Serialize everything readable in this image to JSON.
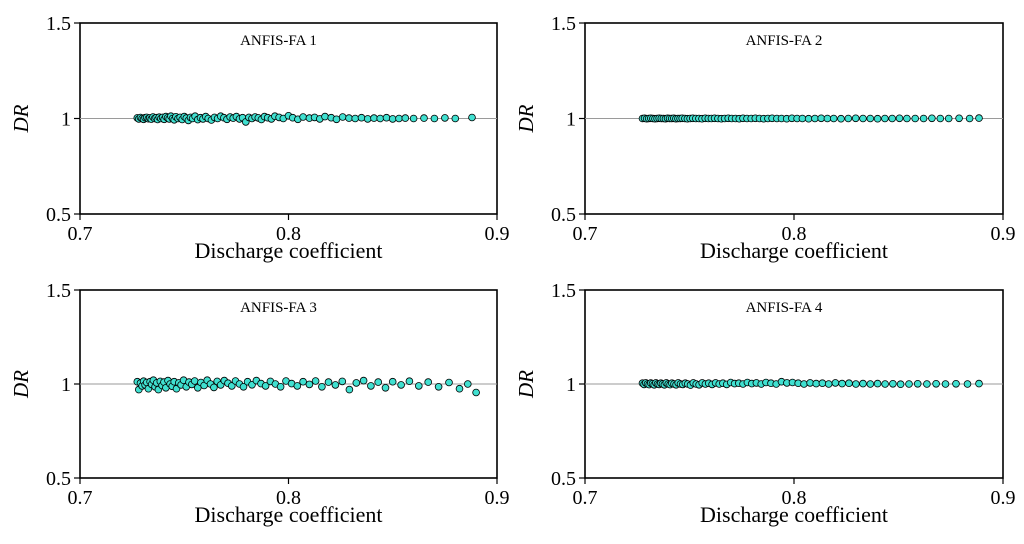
{
  "chart_data": [
    {
      "type": "scatter",
      "title": "ANFIS-FA 1",
      "xlabel": "Discharge coefficient",
      "ylabel": "DR",
      "xlim": [
        0.7,
        0.9
      ],
      "ylim": [
        0.5,
        1.5
      ],
      "x_ticks": [
        "0.7",
        "0.8",
        "0.9"
      ],
      "y_ticks": [
        "0.5",
        "1",
        "1.5"
      ],
      "reference_line": 1,
      "grid": false,
      "marker_color": "#40e0d0",
      "marker_edge": "#000000",
      "points": [
        [
          0.7275,
          1.003
        ],
        [
          0.7282,
          0.998
        ],
        [
          0.729,
          1.005
        ],
        [
          0.7298,
          1.0
        ],
        [
          0.7305,
          0.996
        ],
        [
          0.7312,
          1.004
        ],
        [
          0.732,
          1.006
        ],
        [
          0.7328,
          0.999
        ],
        [
          0.7335,
          1.003
        ],
        [
          0.7342,
          0.997
        ],
        [
          0.735,
          1.008
        ],
        [
          0.7358,
          1.0
        ],
        [
          0.7365,
          1.004
        ],
        [
          0.7372,
          0.995
        ],
        [
          0.738,
          1.007
        ],
        [
          0.7388,
          1.0
        ],
        [
          0.7396,
          1.006
        ],
        [
          0.7404,
          0.996
        ],
        [
          0.7412,
          1.01
        ],
        [
          0.742,
          1.003
        ],
        [
          0.7428,
          0.998
        ],
        [
          0.7436,
          1.012
        ],
        [
          0.7444,
          1.0
        ],
        [
          0.7452,
          0.993
        ],
        [
          0.746,
          1.009
        ],
        [
          0.747,
          1.0
        ],
        [
          0.748,
          1.006
        ],
        [
          0.749,
          0.995
        ],
        [
          0.75,
          1.01
        ],
        [
          0.751,
          1.002
        ],
        [
          0.752,
          0.99
        ],
        [
          0.753,
          1.006
        ],
        [
          0.754,
          1.0
        ],
        [
          0.7552,
          1.012
        ],
        [
          0.7565,
          0.994
        ],
        [
          0.7578,
          1.004
        ],
        [
          0.759,
          0.998
        ],
        [
          0.7603,
          1.01
        ],
        [
          0.7615,
          1.0
        ],
        [
          0.763,
          0.992
        ],
        [
          0.7645,
          1.006
        ],
        [
          0.766,
          1.0
        ],
        [
          0.7675,
          1.012
        ],
        [
          0.769,
          1.004
        ],
        [
          0.7705,
          0.996
        ],
        [
          0.772,
          1.008
        ],
        [
          0.7735,
          1.002
        ],
        [
          0.775,
          1.01
        ],
        [
          0.7765,
          0.998
        ],
        [
          0.778,
          1.004
        ],
        [
          0.7795,
          0.982
        ],
        [
          0.781,
          1.006
        ],
        [
          0.7825,
          1.0
        ],
        [
          0.784,
          1.008
        ],
        [
          0.7855,
          1.003
        ],
        [
          0.787,
          0.995
        ],
        [
          0.7885,
          1.01
        ],
        [
          0.79,
          1.004
        ],
        [
          0.7918,
          0.998
        ],
        [
          0.7935,
          1.012
        ],
        [
          0.7955,
          1.006
        ],
        [
          0.7975,
          1.0
        ],
        [
          0.8,
          1.014
        ],
        [
          0.802,
          1.004
        ],
        [
          0.8045,
          0.996
        ],
        [
          0.807,
          1.008
        ],
        [
          0.81,
          1.002
        ],
        [
          0.8125,
          1.006
        ],
        [
          0.815,
          0.998
        ],
        [
          0.8175,
          1.01
        ],
        [
          0.8205,
          1.004
        ],
        [
          0.823,
          0.996
        ],
        [
          0.826,
          1.008
        ],
        [
          0.829,
          1.002
        ],
        [
          0.832,
          1.0
        ],
        [
          0.835,
          1.004
        ],
        [
          0.838,
          0.998
        ],
        [
          0.841,
          1.002
        ],
        [
          0.844,
          1.0
        ],
        [
          0.847,
          1.004
        ],
        [
          0.85,
          0.998
        ],
        [
          0.853,
          1.0
        ],
        [
          0.856,
          1.002
        ],
        [
          0.86,
          1.0
        ],
        [
          0.865,
          1.002
        ],
        [
          0.87,
          1.0
        ],
        [
          0.875,
          1.003
        ],
        [
          0.88,
          1.0
        ],
        [
          0.888,
          1.005
        ]
      ]
    },
    {
      "type": "scatter",
      "title": "ANFIS-FA 2",
      "xlabel": "Discharge coefficient",
      "ylabel": "DR",
      "xlim": [
        0.7,
        0.9
      ],
      "ylim": [
        0.5,
        1.5
      ],
      "x_ticks": [
        "0.7",
        "0.8",
        "0.9"
      ],
      "y_ticks": [
        "0.5",
        "1",
        "1.5"
      ],
      "reference_line": 1,
      "grid": false,
      "marker_color": "#40e0d0",
      "marker_edge": "#000000",
      "points": [
        [
          0.7275,
          1.0
        ],
        [
          0.7285,
          1.001
        ],
        [
          0.7295,
          0.999
        ],
        [
          0.7305,
          1.0
        ],
        [
          0.7315,
          1.001
        ],
        [
          0.7325,
          1.0
        ],
        [
          0.7335,
          0.999
        ],
        [
          0.7345,
          1.0
        ],
        [
          0.7355,
          1.001
        ],
        [
          0.7365,
          1.0
        ],
        [
          0.7375,
          1.0
        ],
        [
          0.7385,
          0.999
        ],
        [
          0.7395,
          1.001
        ],
        [
          0.7405,
          1.0
        ],
        [
          0.7415,
          1.0
        ],
        [
          0.7425,
          1.001
        ],
        [
          0.7435,
          0.999
        ],
        [
          0.7445,
          1.0
        ],
        [
          0.7455,
          1.0
        ],
        [
          0.7465,
          1.001
        ],
        [
          0.7478,
          1.0
        ],
        [
          0.749,
          0.999
        ],
        [
          0.7503,
          1.0
        ],
        [
          0.7516,
          1.001
        ],
        [
          0.753,
          1.0
        ],
        [
          0.7545,
          1.0
        ],
        [
          0.756,
          0.999
        ],
        [
          0.7575,
          1.001
        ],
        [
          0.759,
          1.0
        ],
        [
          0.7605,
          1.0
        ],
        [
          0.762,
          1.001
        ],
        [
          0.7636,
          1.0
        ],
        [
          0.7652,
          0.999
        ],
        [
          0.7668,
          1.0
        ],
        [
          0.7685,
          1.001
        ],
        [
          0.7702,
          1.0
        ],
        [
          0.772,
          1.0
        ],
        [
          0.7738,
          0.999
        ],
        [
          0.7756,
          1.001
        ],
        [
          0.7775,
          1.0
        ],
        [
          0.7795,
          1.0
        ],
        [
          0.7815,
          1.001
        ],
        [
          0.7835,
          1.0
        ],
        [
          0.7855,
          0.999
        ],
        [
          0.7875,
          1.0
        ],
        [
          0.7895,
          1.001
        ],
        [
          0.7918,
          1.0
        ],
        [
          0.794,
          1.0
        ],
        [
          0.7965,
          0.999
        ],
        [
          0.799,
          1.001
        ],
        [
          0.8015,
          1.0
        ],
        [
          0.804,
          1.0
        ],
        [
          0.807,
          0.999
        ],
        [
          0.81,
          1.0
        ],
        [
          0.813,
          1.001
        ],
        [
          0.816,
          1.0
        ],
        [
          0.819,
          1.0
        ],
        [
          0.8225,
          0.999
        ],
        [
          0.826,
          1.0
        ],
        [
          0.8295,
          1.001
        ],
        [
          0.833,
          1.0
        ],
        [
          0.8365,
          1.0
        ],
        [
          0.84,
          0.999
        ],
        [
          0.8435,
          1.0
        ],
        [
          0.847,
          1.0
        ],
        [
          0.8505,
          1.001
        ],
        [
          0.854,
          1.0
        ],
        [
          0.858,
          1.0
        ],
        [
          0.862,
          1.0
        ],
        [
          0.866,
          1.001
        ],
        [
          0.87,
          1.0
        ],
        [
          0.874,
          1.0
        ],
        [
          0.879,
          1.001
        ],
        [
          0.884,
          1.0
        ],
        [
          0.8885,
          1.002
        ]
      ]
    },
    {
      "type": "scatter",
      "title": "ANFIS-FA 3",
      "xlabel": "Discharge coefficient",
      "ylabel": "DR",
      "xlim": [
        0.7,
        0.9
      ],
      "ylim": [
        0.5,
        1.5
      ],
      "x_ticks": [
        "0.7",
        "0.8",
        "0.9"
      ],
      "y_ticks": [
        "0.5",
        "1",
        "1.5"
      ],
      "reference_line": 1,
      "grid": false,
      "marker_color": "#40e0d0",
      "marker_edge": "#000000",
      "points": [
        [
          0.7275,
          1.012
        ],
        [
          0.7282,
          0.97
        ],
        [
          0.729,
          1.005
        ],
        [
          0.7298,
          0.99
        ],
        [
          0.7305,
          1.015
        ],
        [
          0.7312,
          0.995
        ],
        [
          0.732,
          1.008
        ],
        [
          0.7328,
          0.975
        ],
        [
          0.7336,
          1.012
        ],
        [
          0.7344,
          0.998
        ],
        [
          0.7352,
          1.02
        ],
        [
          0.736,
          0.985
        ],
        [
          0.7368,
          1.006
        ],
        [
          0.7376,
          0.97
        ],
        [
          0.7385,
          1.014
        ],
        [
          0.7394,
          0.992
        ],
        [
          0.7403,
          1.01
        ],
        [
          0.7412,
          0.98
        ],
        [
          0.7422,
          1.018
        ],
        [
          0.7432,
          1.0
        ],
        [
          0.7442,
          0.988
        ],
        [
          0.7452,
          1.012
        ],
        [
          0.7463,
          0.975
        ],
        [
          0.7474,
          1.006
        ],
        [
          0.7485,
          0.995
        ],
        [
          0.7497,
          1.02
        ],
        [
          0.751,
          0.985
        ],
        [
          0.7523,
          1.01
        ],
        [
          0.7536,
          0.998
        ],
        [
          0.755,
          1.016
        ],
        [
          0.7565,
          0.98
        ],
        [
          0.758,
          1.008
        ],
        [
          0.7595,
          0.992
        ],
        [
          0.761,
          1.02
        ],
        [
          0.7626,
          1.0
        ],
        [
          0.7642,
          0.982
        ],
        [
          0.7658,
          1.014
        ],
        [
          0.7675,
          0.995
        ],
        [
          0.7692,
          1.018
        ],
        [
          0.771,
          1.004
        ],
        [
          0.7728,
          0.99
        ],
        [
          0.7746,
          1.016
        ],
        [
          0.7765,
          1.0
        ],
        [
          0.7784,
          0.985
        ],
        [
          0.7804,
          1.012
        ],
        [
          0.7825,
          0.996
        ],
        [
          0.7846,
          1.018
        ],
        [
          0.7868,
          1.002
        ],
        [
          0.789,
          0.99
        ],
        [
          0.7913,
          1.014
        ],
        [
          0.7937,
          1.0
        ],
        [
          0.7962,
          0.985
        ],
        [
          0.7988,
          1.016
        ],
        [
          0.8015,
          1.002
        ],
        [
          0.8042,
          0.99
        ],
        [
          0.807,
          1.012
        ],
        [
          0.81,
          0.998
        ],
        [
          0.813,
          1.016
        ],
        [
          0.816,
          0.985
        ],
        [
          0.8192,
          1.01
        ],
        [
          0.8225,
          0.995
        ],
        [
          0.8258,
          1.014
        ],
        [
          0.8292,
          0.97
        ],
        [
          0.8325,
          1.006
        ],
        [
          0.836,
          1.018
        ],
        [
          0.8395,
          0.99
        ],
        [
          0.843,
          1.01
        ],
        [
          0.8465,
          0.98
        ],
        [
          0.85,
          1.012
        ],
        [
          0.854,
          0.995
        ],
        [
          0.858,
          1.015
        ],
        [
          0.8625,
          0.99
        ],
        [
          0.867,
          1.01
        ],
        [
          0.872,
          0.985
        ],
        [
          0.877,
          1.008
        ],
        [
          0.882,
          0.975
        ],
        [
          0.886,
          1.0
        ],
        [
          0.89,
          0.955
        ]
      ]
    },
    {
      "type": "scatter",
      "title": "ANFIS-FA 4",
      "xlabel": "Discharge coefficient",
      "ylabel": "DR",
      "xlim": [
        0.7,
        0.9
      ],
      "ylim": [
        0.5,
        1.5
      ],
      "x_ticks": [
        "0.7",
        "0.8",
        "0.9"
      ],
      "y_ticks": [
        "0.5",
        "1",
        "1.5"
      ],
      "reference_line": 1,
      "grid": false,
      "marker_color": "#40e0d0",
      "marker_edge": "#000000",
      "points": [
        [
          0.7275,
          1.004
        ],
        [
          0.7283,
          0.998
        ],
        [
          0.7291,
          1.006
        ],
        [
          0.7299,
          1.0
        ],
        [
          0.7307,
          0.997
        ],
        [
          0.7315,
          1.005
        ],
        [
          0.7323,
          1.001
        ],
        [
          0.7331,
          0.996
        ],
        [
          0.7339,
          1.006
        ],
        [
          0.7347,
          1.0
        ],
        [
          0.7355,
          0.998
        ],
        [
          0.7363,
          1.004
        ],
        [
          0.7371,
          1.0
        ],
        [
          0.738,
          0.996
        ],
        [
          0.7389,
          1.006
        ],
        [
          0.7398,
          1.0
        ],
        [
          0.7407,
          0.997
        ],
        [
          0.7416,
          1.004
        ],
        [
          0.7426,
          1.0
        ],
        [
          0.7436,
          0.996
        ],
        [
          0.7446,
          1.006
        ],
        [
          0.7457,
          1.0
        ],
        [
          0.7468,
          0.998
        ],
        [
          0.748,
          1.004
        ],
        [
          0.7492,
          1.0
        ],
        [
          0.7505,
          0.994
        ],
        [
          0.7518,
          1.006
        ],
        [
          0.7532,
          1.0
        ],
        [
          0.7546,
          0.996
        ],
        [
          0.7561,
          1.006
        ],
        [
          0.7576,
          1.0
        ],
        [
          0.7592,
          1.004
        ],
        [
          0.7608,
          0.998
        ],
        [
          0.7625,
          1.006
        ],
        [
          0.7642,
          1.0
        ],
        [
          0.766,
          1.004
        ],
        [
          0.7678,
          0.998
        ],
        [
          0.7697,
          1.008
        ],
        [
          0.7716,
          1.002
        ],
        [
          0.7736,
          1.004
        ],
        [
          0.7756,
          1.0
        ],
        [
          0.7777,
          1.008
        ],
        [
          0.7798,
          1.002
        ],
        [
          0.782,
          1.006
        ],
        [
          0.7843,
          1.0
        ],
        [
          0.7866,
          1.008
        ],
        [
          0.789,
          1.004
        ],
        [
          0.7915,
          1.0
        ],
        [
          0.794,
          1.012
        ],
        [
          0.7966,
          1.006
        ],
        [
          0.7993,
          1.008
        ],
        [
          0.802,
          1.004
        ],
        [
          0.8048,
          1.0
        ],
        [
          0.8077,
          1.006
        ],
        [
          0.8106,
          1.002
        ],
        [
          0.8136,
          1.004
        ],
        [
          0.8166,
          1.0
        ],
        [
          0.8198,
          1.006
        ],
        [
          0.823,
          1.002
        ],
        [
          0.8263,
          1.004
        ],
        [
          0.8296,
          1.0
        ],
        [
          0.833,
          1.002
        ],
        [
          0.8365,
          1.0
        ],
        [
          0.84,
          1.002
        ],
        [
          0.8436,
          1.0
        ],
        [
          0.8473,
          1.001
        ],
        [
          0.851,
          0.999
        ],
        [
          0.855,
          1.0
        ],
        [
          0.8592,
          1.001
        ],
        [
          0.8636,
          1.0
        ],
        [
          0.868,
          1.001
        ],
        [
          0.8725,
          1.0
        ],
        [
          0.8775,
          1.001
        ],
        [
          0.883,
          1.0
        ],
        [
          0.8885,
          1.002
        ]
      ]
    }
  ]
}
